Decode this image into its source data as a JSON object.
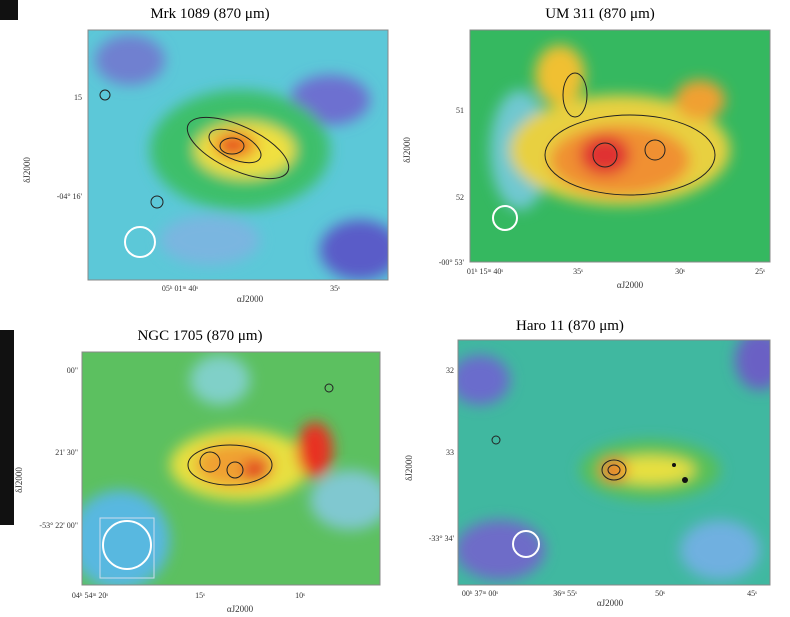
{
  "panels": [
    {
      "title": "Mrk 1089 (870 μm)",
      "yticks": [
        "15",
        "-04° 16'"
      ],
      "xticks": [
        "05ʰ 01ᵐ 40ˢ",
        "35ˢ"
      ],
      "xlabel": "αJ2000",
      "ylabel": "δJ2000"
    },
    {
      "title": "UM 311 (870 μm)",
      "yticks": [
        "51",
        "52",
        "-00° 53'"
      ],
      "xticks": [
        "01ʰ 15ᵐ 40ˢ",
        "35ˢ",
        "30ˢ",
        "25ˢ"
      ],
      "xlabel": "αJ2000",
      "ylabel": "δJ2000"
    },
    {
      "title": "NGC 1705 (870 μm)",
      "yticks": [
        "00\"",
        "21' 30\"",
        "-53° 22' 00\""
      ],
      "xticks": [
        "04ʰ 54ᵐ 20ˢ",
        "15ˢ",
        "10ˢ"
      ],
      "xlabel": "αJ2000",
      "ylabel": "δJ2000"
    },
    {
      "title": "Haro 11 (870 μm)",
      "yticks": [
        "32",
        "33",
        "-33° 34'"
      ],
      "xticks": [
        "00ʰ 37ᵐ 00ˢ",
        "36ᵐ 55ˢ",
        "50ˢ",
        "45ˢ"
      ],
      "xlabel": "αJ2000",
      "ylabel": "δJ2000"
    }
  ]
}
